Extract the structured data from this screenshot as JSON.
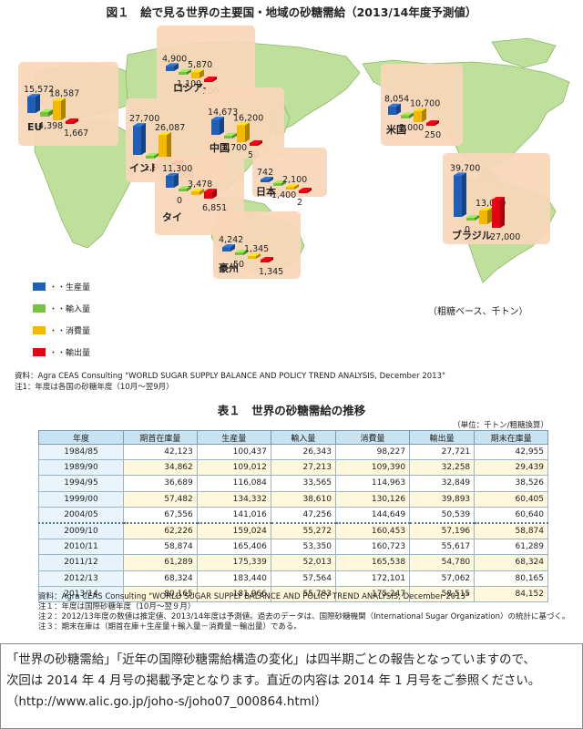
{
  "figure_title": "図１　絵で見る世界の主要国・地域の砂糖需給（2013/14年度予測値）",
  "legend": [
    {
      "label": "・・生産量",
      "color": "#1f5fb8"
    },
    {
      "label": "・・輸入量",
      "color": "#7ac143"
    },
    {
      "label": "・・消費量",
      "color": "#f5b800"
    },
    {
      "label": "・・輸出量",
      "color": "#e60012"
    }
  ],
  "map_unit_note": "（粗糖ベース、千トン）",
  "map_source": "資料：Agra CEAS Consulting \"WORLD SUGAR SUPPLY BALANCE AND POLICY TREND ANALYSIS, December 2013\"",
  "map_note": "注1：年度は各国の砂糖年度（10月～翌9月）",
  "colors": {
    "production": "#1f5fb8",
    "imports": "#7ac143",
    "consumption": "#f5b800",
    "exports": "#e60012",
    "land": "#bfe09a",
    "ocean": "#ffffff",
    "panel": "#f8d6b9"
  },
  "chart_data": {
    "type": "bar",
    "title": "図１　絵で見る世界の主要国・地域の砂糖需給（2013/14年度予測値）",
    "unit": "（粗糖ベース、千トン）",
    "measures": [
      "生産量",
      "輸入量",
      "消費量",
      "輸出量"
    ],
    "regions": [
      {
        "name": "EU",
        "values": [
          15572,
          4398,
          18587,
          1667
        ],
        "labels": [
          "15,572",
          "4,398",
          "18,587",
          "1,667"
        ]
      },
      {
        "name": "ロシア",
        "values": [
          4900,
          1100,
          5870,
          100
        ],
        "labels": [
          "4,900",
          "1,100",
          "5,870",
          "100"
        ]
      },
      {
        "name": "インド",
        "values": [
          27700,
          1000,
          26087,
          1500
        ],
        "labels": [
          "27,700",
          "1,000",
          "26,087",
          "1,500"
        ]
      },
      {
        "name": "中国",
        "values": [
          14673,
          2700,
          16200,
          50
        ],
        "labels": [
          "14,673",
          "2,700",
          "16,200",
          "50"
        ]
      },
      {
        "name": "日本",
        "values": [
          742,
          1400,
          2100,
          2
        ],
        "labels": [
          "742",
          "1,400",
          "2,100",
          "2"
        ]
      },
      {
        "name": "タイ",
        "values": [
          11300,
          0,
          3478,
          6851
        ],
        "labels": [
          "11,300",
          "0",
          "3,478",
          "6,851"
        ]
      },
      {
        "name": "豪州",
        "values": [
          4242,
          50,
          1345,
          1345
        ],
        "labels": [
          "4,242",
          "50",
          "1,345",
          "1,345"
        ]
      },
      {
        "name": "米国",
        "values": [
          8054,
          3000,
          10700,
          250
        ],
        "labels": [
          "8,054",
          "3,000",
          "10,700",
          "250"
        ]
      },
      {
        "name": "ブラジル",
        "values": [
          39700,
          0,
          13050,
          27000
        ],
        "labels": [
          "39,700",
          "0",
          "13,050",
          "27,000"
        ]
      }
    ]
  },
  "table": {
    "title": "表１　世界の砂糖需給の推移",
    "unit": "（単位：千トン/粗糖換算）",
    "headers": [
      "年度",
      "期首在庫量",
      "生産量",
      "輸入量",
      "消費量",
      "輸出量",
      "期末在庫量"
    ],
    "rows": [
      [
        "1984/85",
        "42,123",
        "100,437",
        "26,343",
        "98,227",
        "27,721",
        "42,955"
      ],
      [
        "1989/90",
        "34,862",
        "109,012",
        "27,213",
        "109,390",
        "32,258",
        "29,439"
      ],
      [
        "1994/95",
        "36,689",
        "116,084",
        "33,565",
        "114,963",
        "32,849",
        "38,526"
      ],
      [
        "1999/00",
        "57,482",
        "134,332",
        "38,610",
        "130,126",
        "39,893",
        "60,405"
      ],
      [
        "2004/05",
        "67,556",
        "141,016",
        "47,256",
        "144,649",
        "50,539",
        "60,640"
      ],
      [
        "2009/10",
        "62,226",
        "159,024",
        "55,272",
        "160,453",
        "57,196",
        "58,874"
      ],
      [
        "2010/11",
        "58,874",
        "165,406",
        "53,350",
        "160,723",
        "55,617",
        "61,289"
      ],
      [
        "2011/12",
        "61,289",
        "175,339",
        "52,013",
        "165,538",
        "54,780",
        "68,324"
      ],
      [
        "2012/13",
        "68,324",
        "183,440",
        "57,564",
        "172,101",
        "57,062",
        "80,165"
      ],
      [
        "2013/14",
        "80,165",
        "181,966",
        "55,783",
        "175,247",
        "58,515",
        "84,152"
      ]
    ],
    "source": "資料：Agra CEAS Consulting \"WORLD SUGAR SUPPLY BALANCE AND POLICY TREND ANALYSIS, December 2013\"",
    "note1": "注１：年度は国際砂糖年度（10月～翌９月）",
    "note2": "注２：2012/13年度の数値は推定値、2013/14年度は予測値。過去のデータは、国際砂糖機関（International Sugar Organization）の統計に基づく。",
    "note3": "注３：期末在庫は（期首在庫＋生産量＋輸入量－消費量－輸出量）である。"
  },
  "footer": {
    "line1": "「世界の砂糖需給」「近年の国際砂糖需給構造の変化」は四半期ごとの報告となっていますので、",
    "line2": "次回は 2014 年 4 月号の掲載予定となります。直近の内容は 2014 年 1 月号をご参照ください。",
    "line3": "（http://www.alic.go.jp/joho-s/joho07_000864.html）"
  }
}
